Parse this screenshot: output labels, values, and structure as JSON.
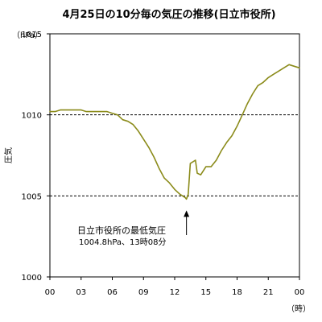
{
  "chart_data": {
    "type": "line",
    "title": "4月25日の10分毎の気圧の推移(日立市役所)",
    "ylabel": "圧気",
    "y_unit": "（hPa）",
    "x_unit": "（時）",
    "ylim": [
      1000,
      1015
    ],
    "y_ticks": [
      "1015",
      "1010",
      "1005",
      "1000"
    ],
    "y_tick_values": [
      1015,
      1010,
      1005,
      1000
    ],
    "x_ticks": [
      "00",
      "03",
      "06",
      "09",
      "12",
      "15",
      "18",
      "21",
      "00"
    ],
    "x_tick_hours": [
      0,
      3,
      6,
      9,
      12,
      15,
      18,
      21,
      24
    ],
    "xlim_hours": [
      0,
      24
    ],
    "reference_lines": [
      1010,
      1005
    ],
    "grid": false,
    "colors": {
      "line": "#8b8b1a",
      "refline": "#000000",
      "axis": "#000000"
    },
    "series": [
      {
        "x_hours": [
          0,
          0.5,
          1,
          1.5,
          2,
          2.5,
          3,
          3.5,
          4,
          4.5,
          5,
          5.5,
          6,
          6.5,
          7,
          7.5,
          8,
          8.5,
          9,
          9.5,
          10,
          10.5,
          11,
          11.5,
          12,
          12.5,
          13,
          13.1333,
          13.3,
          13.5,
          14,
          14.1667,
          14.5,
          15,
          15.5,
          16,
          16.5,
          17,
          17.5,
          18,
          18.5,
          19,
          19.5,
          20,
          20.5,
          21,
          21.5,
          22,
          22.5,
          23,
          23.5,
          24
        ],
        "values": [
          1010.2,
          1010.2,
          1010.3,
          1010.3,
          1010.3,
          1010.3,
          1010.3,
          1010.2,
          1010.2,
          1010.2,
          1010.2,
          1010.2,
          1010.1,
          1010.0,
          1009.7,
          1009.6,
          1009.4,
          1009.0,
          1008.5,
          1008.0,
          1007.4,
          1006.7,
          1006.1,
          1005.8,
          1005.4,
          1005.1,
          1004.9,
          1004.8,
          1005.1,
          1007.0,
          1007.2,
          1006.4,
          1006.3,
          1006.8,
          1006.8,
          1007.2,
          1007.8,
          1008.3,
          1008.7,
          1009.3,
          1010.0,
          1010.7,
          1011.3,
          1011.8,
          1012.0,
          1012.3,
          1012.5,
          1012.7,
          1012.9,
          1013.1,
          1013.0,
          1012.9
        ]
      }
    ],
    "annotation": {
      "line1": "日立市役所の最低気圧",
      "line2": "1004.8hPa、13時08分",
      "at_hour": 13.1333,
      "at_value": 1004.8
    }
  }
}
